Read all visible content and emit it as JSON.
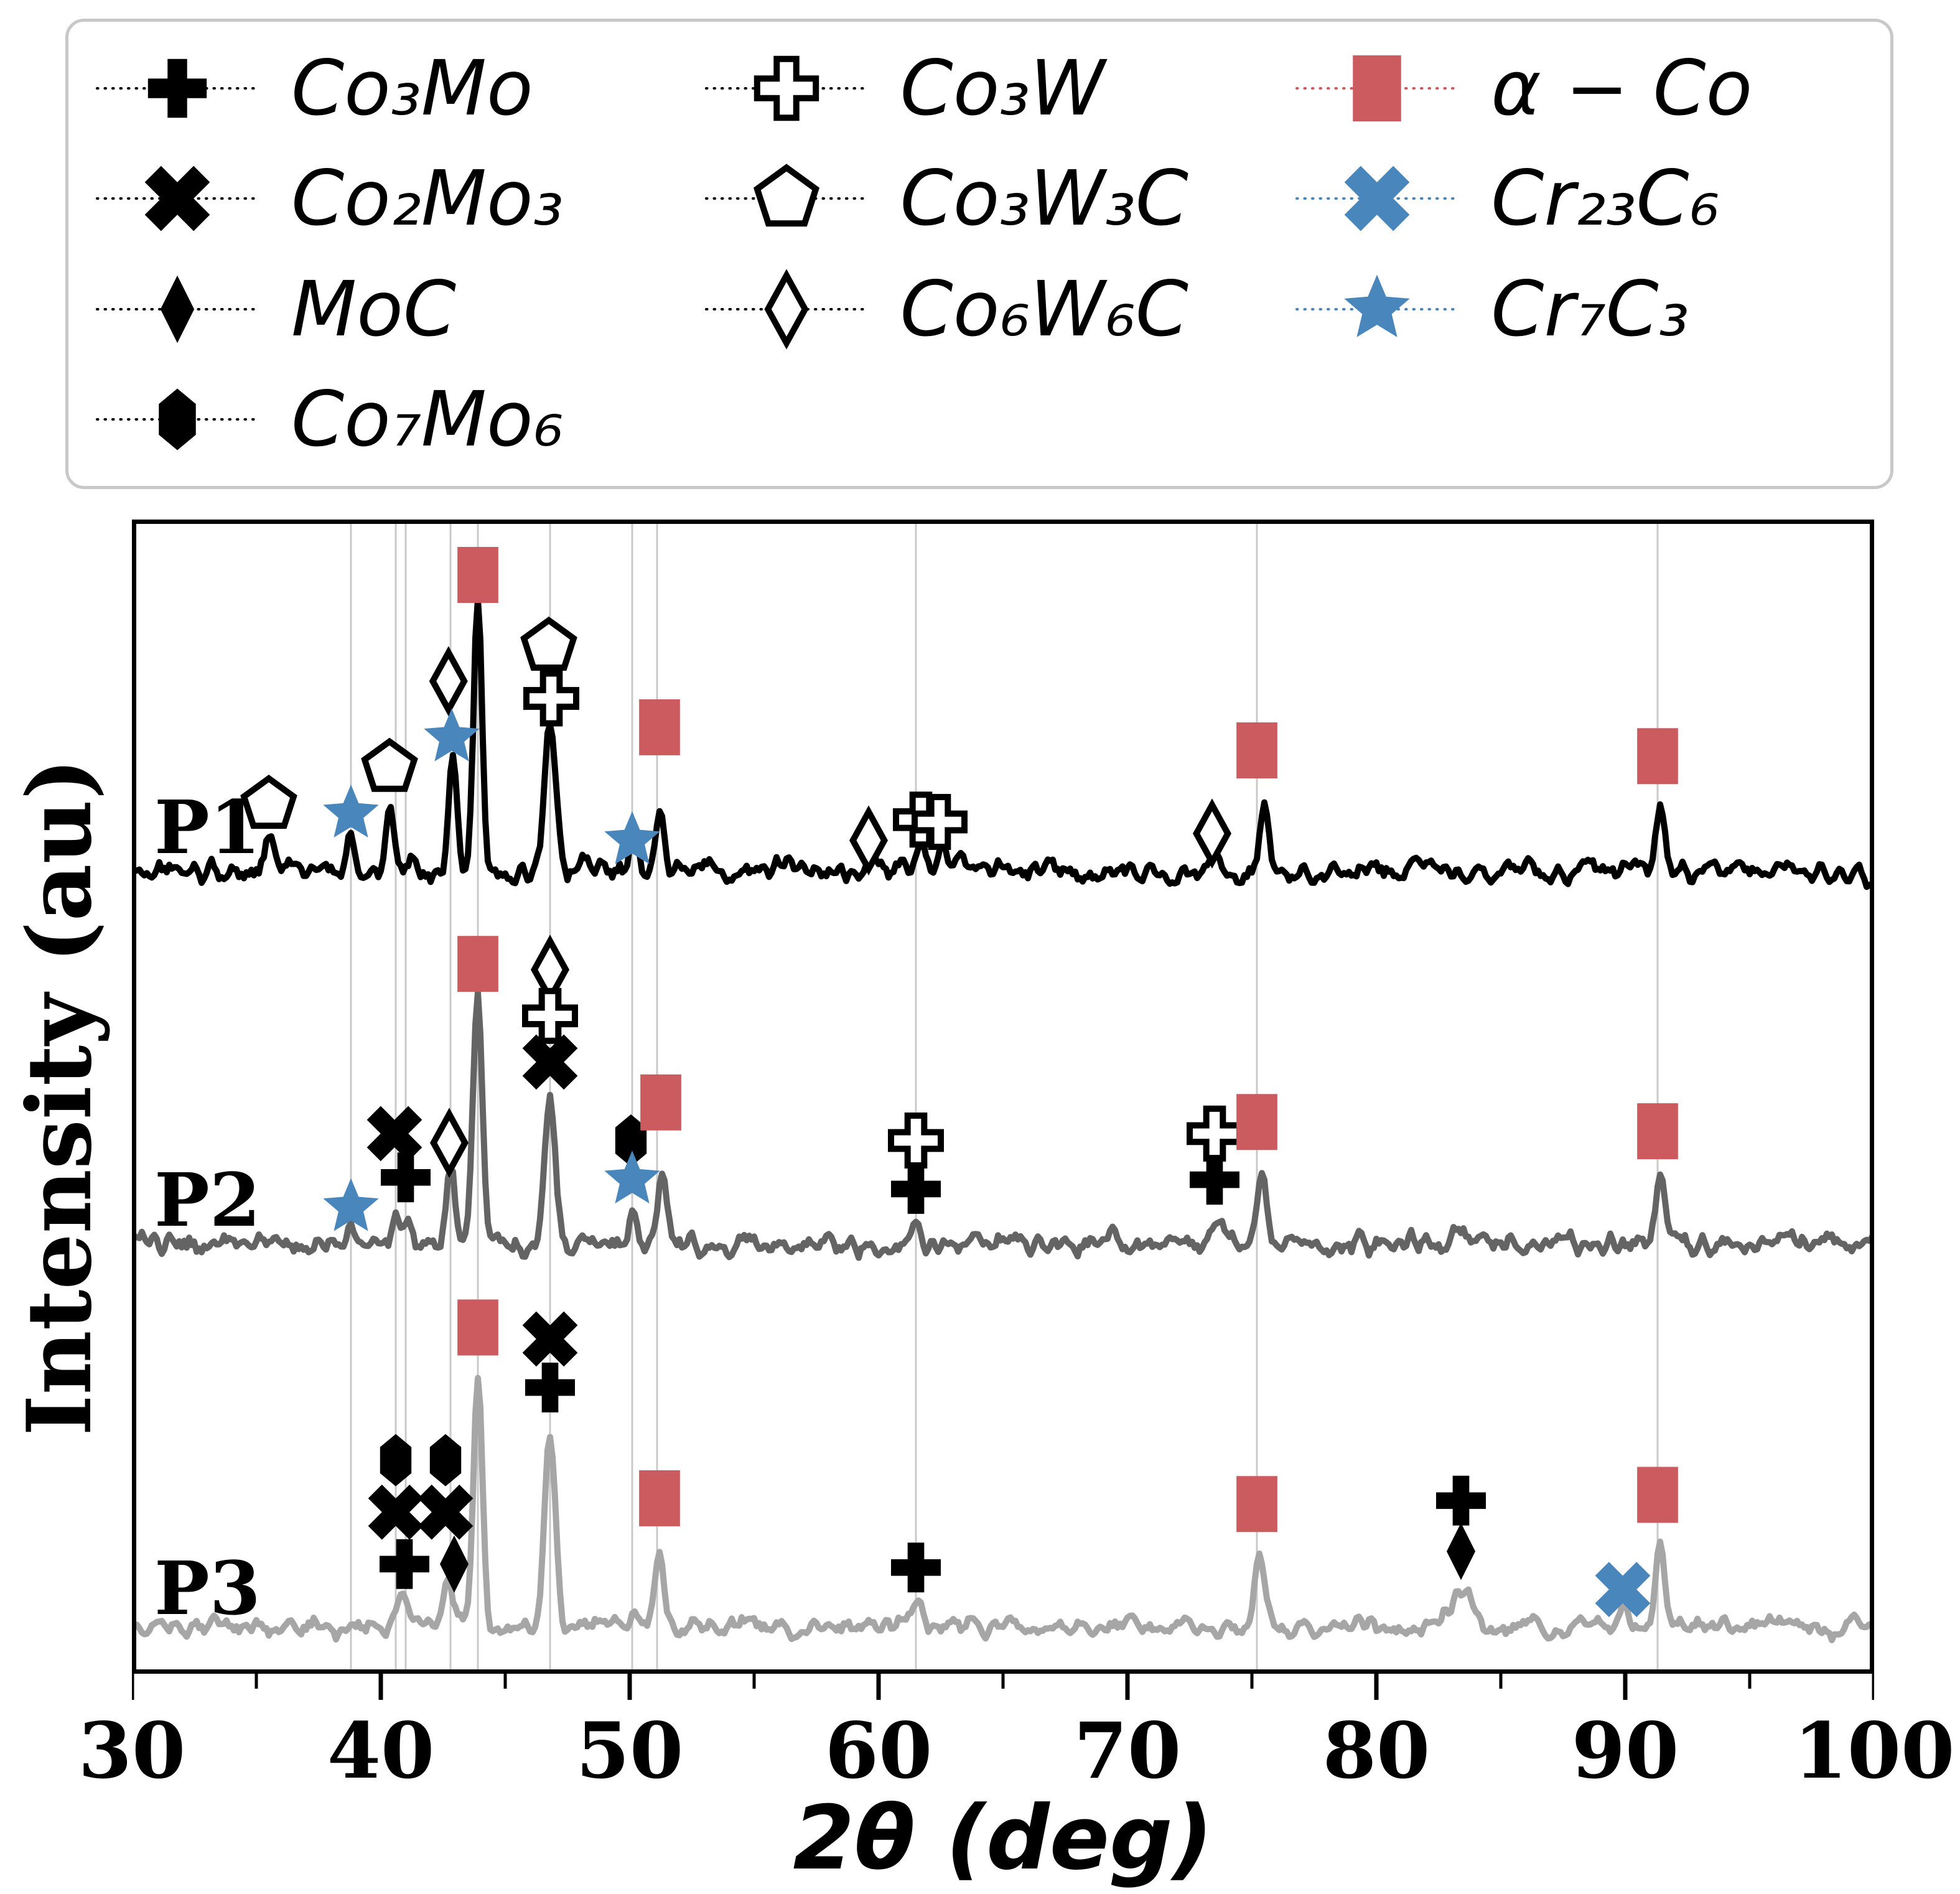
{
  "legend": {
    "border_color": "#c8c8c8",
    "columns": [
      {
        "entries": [
          {
            "phase": "Co3Mo",
            "label": "Co₃Mo",
            "symbol": "filled-plus",
            "color": "#000000",
            "line_color": "#000000"
          },
          {
            "phase": "Co2Mo3",
            "label": "Co₂Mo₃",
            "symbol": "filled-x",
            "color": "#000000",
            "line_color": "#000000"
          },
          {
            "phase": "MoC",
            "label": "MoC",
            "symbol": "filled-diamond",
            "color": "#000000",
            "line_color": "#000000"
          },
          {
            "phase": "Co7Mo6",
            "label": "Co₇Mo₆",
            "symbol": "filled-hexagon",
            "color": "#000000",
            "line_color": "#000000"
          }
        ]
      },
      {
        "entries": [
          {
            "phase": "Co3W",
            "label": "Co₃W",
            "symbol": "open-plus",
            "color": "#000000",
            "line_color": "#000000"
          },
          {
            "phase": "Co3W3C",
            "label": "Co₃W₃C",
            "symbol": "open-pentagon",
            "color": "#000000",
            "line_color": "#000000"
          },
          {
            "phase": "Co6W6C",
            "label": "Co₆W₆C",
            "symbol": "open-diamond",
            "color": "#000000",
            "line_color": "#000000"
          }
        ]
      },
      {
        "entries": [
          {
            "phase": "alpha-Co",
            "label": "α − Co",
            "symbol": "filled-square",
            "color": "#CB5B5E",
            "line_color": "#CB5B5E"
          },
          {
            "phase": "Cr23C6",
            "label": "Cr₂₃C₆",
            "symbol": "filled-x",
            "color": "#4986BB",
            "line_color": "#4986BB"
          },
          {
            "phase": "Cr7C3",
            "label": "Cr₇C₃",
            "symbol": "filled-star",
            "color": "#4986BB",
            "line_color": "#4986BB"
          }
        ]
      }
    ]
  },
  "chart_data": {
    "type": "line",
    "title": "",
    "xlabel": "2θ (deg)",
    "ylabel": "Intensity (au)",
    "xlim": [
      30,
      100
    ],
    "ylim": [
      0,
      1000
    ],
    "x_ticks": [
      30,
      40,
      50,
      60,
      70,
      80,
      90,
      100
    ],
    "x_tick_labels": [
      "30",
      "40",
      "50",
      "60",
      "70",
      "80",
      "90",
      "100"
    ],
    "x_minor_ticks": [
      35,
      45,
      55,
      65,
      75,
      85,
      95
    ],
    "grid_x": [
      38.8,
      40.6,
      41.0,
      42.8,
      43.9,
      46.8,
      50.1,
      51.1,
      61.5,
      75.2,
      91.3
    ],
    "grid_color": "#c9c9c9",
    "series": [
      {
        "name": "P1",
        "color": "#000000",
        "baseline": 695,
        "noise": 9,
        "label_pos": [
          30.9,
          733
        ],
        "peaks": [
          [
            35.5,
            26,
            0.18
          ],
          [
            36.3,
            8,
            0.2
          ],
          [
            38.8,
            35,
            0.15
          ],
          [
            40.4,
            52,
            0.15
          ],
          [
            41.3,
            13,
            0.15
          ],
          [
            42.9,
            100,
            0.17
          ],
          [
            43.9,
            235,
            0.17
          ],
          [
            46.8,
            130,
            0.21
          ],
          [
            48.2,
            9,
            0.2
          ],
          [
            50.2,
            25,
            0.16
          ],
          [
            51.25,
            50,
            0.17
          ],
          [
            53.3,
            7,
            0.3
          ],
          [
            56.0,
            5,
            0.3
          ],
          [
            59.9,
            9,
            0.25
          ],
          [
            61.7,
            25,
            0.18
          ],
          [
            62.5,
            19,
            0.18
          ],
          [
            63.3,
            11,
            0.2
          ],
          [
            66.5,
            5,
            0.3
          ],
          [
            70.0,
            4,
            0.3
          ],
          [
            73.6,
            15,
            0.25
          ],
          [
            75.5,
            55,
            0.19
          ],
          [
            78.5,
            5,
            0.3
          ],
          [
            82.0,
            4,
            0.4
          ],
          [
            86.0,
            5,
            0.4
          ],
          [
            88.5,
            5,
            0.3
          ],
          [
            91.4,
            52,
            0.19
          ],
          [
            93.5,
            6,
            0.3
          ],
          [
            96.5,
            7,
            0.35
          ]
        ],
        "markers": [
          [
            "Co3W3C",
            35.5,
            753
          ],
          [
            "Cr7C3",
            38.8,
            745
          ],
          [
            "Co3W3C",
            40.35,
            785
          ],
          [
            "Co6W6C",
            42.72,
            860
          ],
          [
            "Cr7C3",
            42.85,
            811
          ],
          [
            "alpha-Co",
            43.9,
            952
          ],
          [
            "Co3W3C",
            46.75,
            890
          ],
          [
            "Co3W",
            46.85,
            845
          ],
          [
            "Cr7C3",
            50.1,
            722
          ],
          [
            "alpha-Co",
            51.2,
            820
          ],
          [
            "Co6W6C",
            59.6,
            722
          ],
          [
            "Co3W",
            61.7,
            740
          ],
          [
            "Co3W",
            62.45,
            738
          ],
          [
            "Co6W6C",
            73.4,
            728
          ],
          [
            "alpha-Co",
            75.2,
            800
          ],
          [
            "alpha-Co",
            91.3,
            795
          ]
        ]
      },
      {
        "name": "P2",
        "color": "#646464",
        "baseline": 372,
        "noise": 9,
        "label_pos": [
          30.9,
          410
        ],
        "peaks": [
          [
            38.8,
            14,
            0.15
          ],
          [
            40.6,
            18,
            0.16
          ],
          [
            41.1,
            16,
            0.16
          ],
          [
            42.8,
            66,
            0.17
          ],
          [
            43.9,
            215,
            0.18
          ],
          [
            46.8,
            125,
            0.22
          ],
          [
            50.1,
            25,
            0.16
          ],
          [
            51.3,
            60,
            0.18
          ],
          [
            54.5,
            6,
            0.3
          ],
          [
            58.0,
            5,
            0.3
          ],
          [
            61.5,
            26,
            0.2
          ],
          [
            65.0,
            5,
            0.3
          ],
          [
            69.5,
            6,
            0.3
          ],
          [
            73.6,
            12,
            0.25
          ],
          [
            75.4,
            60,
            0.2
          ],
          [
            79.0,
            5,
            0.3
          ],
          [
            83.3,
            9,
            0.4
          ],
          [
            87.5,
            5,
            0.3
          ],
          [
            91.4,
            56,
            0.2
          ],
          [
            96.0,
            6,
            0.4
          ]
        ],
        "markers": [
          [
            "Cr7C3",
            38.8,
            404
          ],
          [
            "Co2Mo3",
            40.55,
            468
          ],
          [
            "Co3Mo",
            41.0,
            430
          ],
          [
            "Co6W6C",
            42.75,
            460
          ],
          [
            "alpha-Co",
            43.9,
            615
          ],
          [
            "Co6W6C",
            46.8,
            610
          ],
          [
            "Co3W",
            46.8,
            570
          ],
          [
            "Co2Mo3",
            46.8,
            530
          ],
          [
            "Co7Mo6",
            50.05,
            462
          ],
          [
            "Cr7C3",
            50.1,
            428
          ],
          [
            "alpha-Co",
            51.25,
            495
          ],
          [
            "Co3W",
            61.5,
            462
          ],
          [
            "Co3Mo",
            61.5,
            420
          ],
          [
            "Co3W",
            73.5,
            468
          ],
          [
            "Co3Mo",
            73.5,
            428
          ],
          [
            "alpha-Co",
            75.2,
            478
          ],
          [
            "alpha-Co",
            91.3,
            470
          ]
        ]
      },
      {
        "name": "P3",
        "color": "#a6a6a6",
        "baseline": 40,
        "noise": 8,
        "label_pos": [
          30.9,
          74
        ],
        "peaks": [
          [
            36.0,
            4,
            0.3
          ],
          [
            40.9,
            30,
            0.25
          ],
          [
            42.7,
            44,
            0.22
          ],
          [
            43.9,
            220,
            0.18
          ],
          [
            46.8,
            165,
            0.22
          ],
          [
            50.2,
            12,
            0.2
          ],
          [
            51.2,
            63,
            0.18
          ],
          [
            55.0,
            5,
            0.3
          ],
          [
            61.5,
            22,
            0.22
          ],
          [
            65.5,
            4,
            0.3
          ],
          [
            70.0,
            4,
            0.3
          ],
          [
            75.3,
            60,
            0.2
          ],
          [
            79.5,
            5,
            0.3
          ],
          [
            83.4,
            30,
            0.45
          ],
          [
            88.0,
            5,
            0.3
          ],
          [
            90.0,
            18,
            0.2
          ],
          [
            91.4,
            74,
            0.19
          ],
          [
            95.5,
            6,
            0.35
          ]
        ],
        "markers": [
          [
            "Co7Mo6",
            40.6,
            185
          ],
          [
            "Co2Mo3",
            40.6,
            140
          ],
          [
            "Co3Mo",
            40.95,
            95
          ],
          [
            "Co7Mo6",
            42.6,
            185
          ],
          [
            "Co2Mo3",
            42.6,
            140
          ],
          [
            "MoC",
            42.95,
            95
          ],
          [
            "alpha-Co",
            43.9,
            300
          ],
          [
            "Co2Mo3",
            46.8,
            290
          ],
          [
            "Co3Mo",
            46.8,
            248
          ],
          [
            "alpha-Co",
            51.2,
            152
          ],
          [
            "Co3Mo",
            61.5,
            92
          ],
          [
            "alpha-Co",
            75.2,
            147
          ],
          [
            "Co3Mo",
            83.4,
            150
          ],
          [
            "MoC",
            83.4,
            106
          ],
          [
            "Cr23C6",
            89.9,
            73
          ],
          [
            "alpha-Co",
            91.3,
            155
          ]
        ]
      }
    ]
  }
}
